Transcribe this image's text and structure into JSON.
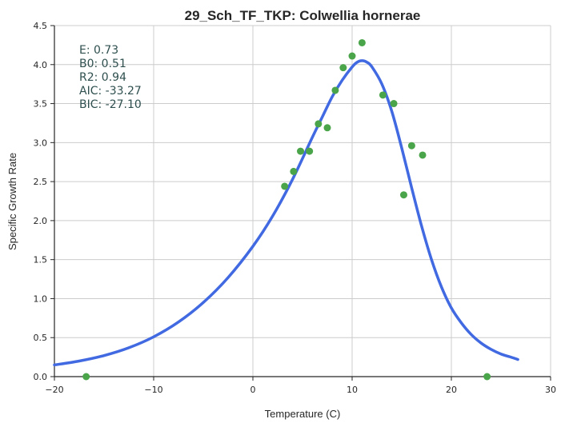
{
  "chart_data": {
    "type": "scatter",
    "title": "29_Sch_TF_TKP: Colwellia hornerae",
    "xlabel": "Temperature (C)",
    "ylabel": "Specific Growth Rate",
    "xlim": [
      -20,
      30
    ],
    "ylim": [
      0,
      4.5
    ],
    "xticks": [
      -20,
      -10,
      0,
      10,
      20,
      30
    ],
    "xtick_labels": [
      "−20",
      "−10",
      "0",
      "10",
      "20",
      "30"
    ],
    "yticks": [
      0,
      0.5,
      1.0,
      1.5,
      2.0,
      2.5,
      3.0,
      3.5,
      4.0,
      4.5
    ],
    "ytick_labels": [
      "0.0",
      "0.5",
      "1.0",
      "1.5",
      "2.0",
      "2.5",
      "3.0",
      "3.5",
      "4.0",
      "4.5"
    ],
    "grid": true,
    "stats": [
      "E:  0.73",
      "B0:  0.51",
      "R2:  0.94",
      "AIC: -33.27",
      "BIC: -27.10"
    ],
    "series": [
      {
        "kind": "scatter",
        "color": "#4aa54a",
        "x": [
          -16.8,
          3.2,
          4.1,
          4.8,
          5.7,
          6.6,
          7.5,
          8.3,
          9.1,
          10.0,
          11.0,
          13.1,
          14.2,
          15.2,
          16.0,
          17.1,
          23.6
        ],
        "y": [
          0.0,
          2.44,
          2.63,
          2.89,
          2.89,
          3.24,
          3.19,
          3.67,
          3.96,
          4.11,
          4.28,
          3.61,
          3.5,
          2.33,
          2.96,
          2.84,
          0.0
        ]
      },
      {
        "kind": "line",
        "color": "#4169e1",
        "x": [
          -20,
          -17.5,
          -15,
          -12.5,
          -10,
          -7.5,
          -5,
          -2.5,
          0,
          2,
          4,
          6,
          7,
          8,
          9,
          10,
          10.5,
          11,
          11.5,
          12,
          13,
          14,
          15,
          16,
          17,
          18,
          19,
          20,
          21,
          22,
          23,
          24,
          25,
          26,
          26.7
        ],
        "y": [
          0.15,
          0.2,
          0.27,
          0.37,
          0.51,
          0.7,
          0.95,
          1.27,
          1.67,
          2.06,
          2.53,
          3.07,
          3.33,
          3.59,
          3.8,
          3.97,
          4.03,
          4.05,
          4.03,
          3.97,
          3.75,
          3.4,
          2.93,
          2.42,
          1.93,
          1.5,
          1.15,
          0.88,
          0.69,
          0.54,
          0.43,
          0.35,
          0.29,
          0.25,
          0.22
        ]
      }
    ]
  }
}
